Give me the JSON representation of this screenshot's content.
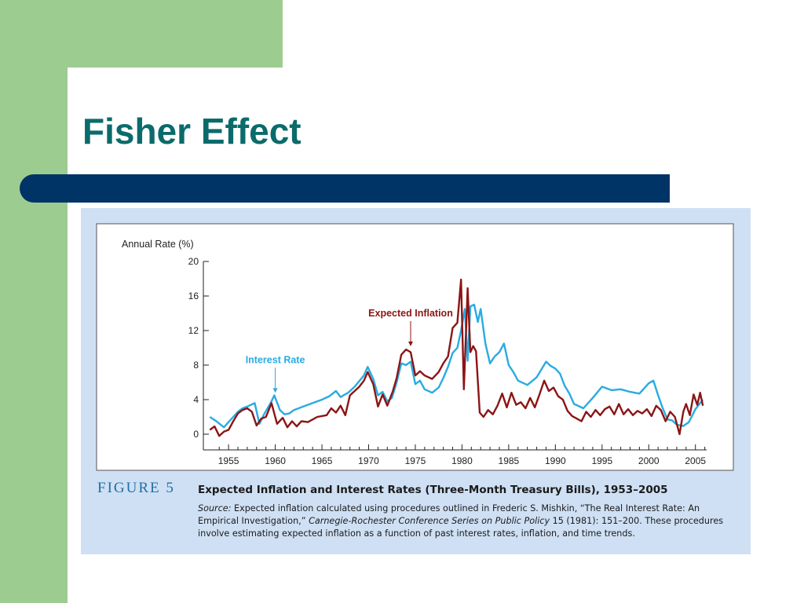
{
  "slide": {
    "title": "Fisher Effect"
  },
  "figure": {
    "label": "FIGURE 5",
    "title": "Expected Inflation and Interest Rates (Three-Month Treasury Bills), 1953–2005",
    "source_label": "Source:",
    "source_text_1": " Expected inflation calculated using procedures outlined in Frederic S. Mishkin, “The Real Interest Rate: An Empirical Investigation,” ",
    "source_journal": "Carnegie-Rochester Conference Series on Public Policy",
    "source_text_2": " 15 (1981): 151–200. These procedures involve estimating expected inflation as a function of past interest rates, inflation, and time trends."
  },
  "colors": {
    "interest_rate": "#29abe2",
    "expected_inflation": "#8b1515",
    "accent_title": "#0b6b6b",
    "bar": "#003366"
  },
  "chart_data": {
    "type": "line",
    "ylabel": "Annual Rate (%)",
    "ylim": [
      0,
      20
    ],
    "yticks": [
      0,
      4,
      8,
      12,
      16,
      20
    ],
    "xlim": [
      1952.3,
      2006.2
    ],
    "xticks": [
      1955,
      1960,
      1965,
      1970,
      1975,
      1980,
      1985,
      1990,
      1995,
      2000,
      2005
    ],
    "annotations": [
      {
        "text": "Interest Rate",
        "series": "Interest Rate",
        "x": 1960,
        "y": 4.6
      },
      {
        "text": "Expected Inflation",
        "series": "Expected Inflation",
        "x": 1974.5,
        "y": 10.0
      }
    ],
    "series": [
      {
        "name": "Interest Rate",
        "color": "#29abe2",
        "points": [
          [
            1953.0,
            2.0
          ],
          [
            1953.7,
            1.5
          ],
          [
            1954.5,
            0.8
          ],
          [
            1955.0,
            1.4
          ],
          [
            1955.5,
            2.0
          ],
          [
            1956.0,
            2.6
          ],
          [
            1956.5,
            3.0
          ],
          [
            1957.0,
            3.2
          ],
          [
            1957.8,
            3.6
          ],
          [
            1958.3,
            1.2
          ],
          [
            1958.8,
            2.3
          ],
          [
            1959.5,
            3.6
          ],
          [
            1959.9,
            4.5
          ],
          [
            1960.5,
            2.8
          ],
          [
            1961.0,
            2.3
          ],
          [
            1961.5,
            2.4
          ],
          [
            1962.0,
            2.8
          ],
          [
            1963.0,
            3.2
          ],
          [
            1964.0,
            3.6
          ],
          [
            1965.0,
            4.0
          ],
          [
            1965.8,
            4.4
          ],
          [
            1966.5,
            5.0
          ],
          [
            1967.0,
            4.3
          ],
          [
            1967.8,
            4.8
          ],
          [
            1968.5,
            5.5
          ],
          [
            1969.5,
            6.8
          ],
          [
            1969.9,
            7.8
          ],
          [
            1970.5,
            6.4
          ],
          [
            1971.0,
            4.5
          ],
          [
            1971.5,
            4.9
          ],
          [
            1972.0,
            3.8
          ],
          [
            1972.5,
            4.2
          ],
          [
            1973.0,
            6.0
          ],
          [
            1973.5,
            8.2
          ],
          [
            1974.0,
            8.0
          ],
          [
            1974.5,
            8.4
          ],
          [
            1975.0,
            5.8
          ],
          [
            1975.5,
            6.2
          ],
          [
            1976.0,
            5.2
          ],
          [
            1976.8,
            4.8
          ],
          [
            1977.5,
            5.4
          ],
          [
            1978.0,
            6.5
          ],
          [
            1978.5,
            7.8
          ],
          [
            1979.0,
            9.4
          ],
          [
            1979.5,
            10.0
          ],
          [
            1979.9,
            12.0
          ],
          [
            1980.3,
            14.5
          ],
          [
            1980.6,
            8.5
          ],
          [
            1980.9,
            14.8
          ],
          [
            1981.3,
            15.0
          ],
          [
            1981.7,
            13.0
          ],
          [
            1982.0,
            14.5
          ],
          [
            1982.5,
            10.5
          ],
          [
            1983.0,
            8.2
          ],
          [
            1983.5,
            9.0
          ],
          [
            1984.0,
            9.5
          ],
          [
            1984.5,
            10.5
          ],
          [
            1985.0,
            8.0
          ],
          [
            1985.5,
            7.2
          ],
          [
            1986.0,
            6.2
          ],
          [
            1987.0,
            5.7
          ],
          [
            1988.0,
            6.6
          ],
          [
            1989.0,
            8.4
          ],
          [
            1989.5,
            7.9
          ],
          [
            1990.0,
            7.6
          ],
          [
            1990.5,
            7.0
          ],
          [
            1991.0,
            5.6
          ],
          [
            1991.5,
            4.7
          ],
          [
            1992.0,
            3.5
          ],
          [
            1993.0,
            3.0
          ],
          [
            1994.0,
            4.2
          ],
          [
            1995.0,
            5.5
          ],
          [
            1996.0,
            5.1
          ],
          [
            1997.0,
            5.2
          ],
          [
            1998.0,
            4.9
          ],
          [
            1999.0,
            4.7
          ],
          [
            2000.0,
            5.9
          ],
          [
            2000.5,
            6.2
          ],
          [
            2001.0,
            4.5
          ],
          [
            2001.5,
            3.0
          ],
          [
            2002.0,
            1.7
          ],
          [
            2002.5,
            1.6
          ],
          [
            2003.0,
            1.1
          ],
          [
            2003.7,
            0.95
          ],
          [
            2004.3,
            1.4
          ],
          [
            2005.0,
            2.9
          ],
          [
            2005.8,
            4.0
          ]
        ]
      },
      {
        "name": "Expected Inflation",
        "color": "#8b1515",
        "points": [
          [
            1953.0,
            0.5
          ],
          [
            1953.5,
            0.9
          ],
          [
            1954.0,
            -0.2
          ],
          [
            1954.5,
            0.3
          ],
          [
            1955.0,
            0.5
          ],
          [
            1955.5,
            1.5
          ],
          [
            1956.0,
            2.4
          ],
          [
            1956.5,
            2.8
          ],
          [
            1957.0,
            3.0
          ],
          [
            1957.5,
            2.6
          ],
          [
            1958.0,
            1.0
          ],
          [
            1958.5,
            1.8
          ],
          [
            1959.0,
            2.0
          ],
          [
            1959.6,
            3.6
          ],
          [
            1960.2,
            1.2
          ],
          [
            1960.8,
            1.9
          ],
          [
            1961.3,
            0.8
          ],
          [
            1961.8,
            1.5
          ],
          [
            1962.3,
            0.9
          ],
          [
            1962.8,
            1.5
          ],
          [
            1963.5,
            1.4
          ],
          [
            1964.5,
            2.0
          ],
          [
            1965.5,
            2.2
          ],
          [
            1966.0,
            3.0
          ],
          [
            1966.5,
            2.5
          ],
          [
            1967.0,
            3.3
          ],
          [
            1967.5,
            2.2
          ],
          [
            1968.0,
            4.5
          ],
          [
            1968.5,
            5.0
          ],
          [
            1969.0,
            5.5
          ],
          [
            1969.5,
            6.2
          ],
          [
            1969.9,
            7.2
          ],
          [
            1970.5,
            5.8
          ],
          [
            1971.0,
            3.2
          ],
          [
            1971.5,
            4.6
          ],
          [
            1972.0,
            3.3
          ],
          [
            1972.6,
            5.0
          ],
          [
            1973.0,
            6.5
          ],
          [
            1973.5,
            9.2
          ],
          [
            1974.0,
            9.8
          ],
          [
            1974.5,
            9.5
          ],
          [
            1975.0,
            6.8
          ],
          [
            1975.5,
            7.3
          ],
          [
            1976.0,
            6.8
          ],
          [
            1976.8,
            6.4
          ],
          [
            1977.5,
            7.2
          ],
          [
            1978.0,
            8.2
          ],
          [
            1978.5,
            9.0
          ],
          [
            1979.0,
            12.3
          ],
          [
            1979.5,
            12.9
          ],
          [
            1979.9,
            17.9
          ],
          [
            1980.2,
            5.2
          ],
          [
            1980.6,
            16.9
          ],
          [
            1980.9,
            9.5
          ],
          [
            1981.2,
            10.2
          ],
          [
            1981.5,
            9.6
          ],
          [
            1981.9,
            2.5
          ],
          [
            1982.3,
            2.0
          ],
          [
            1982.8,
            2.8
          ],
          [
            1983.3,
            2.3
          ],
          [
            1983.8,
            3.3
          ],
          [
            1984.3,
            4.7
          ],
          [
            1984.8,
            3.1
          ],
          [
            1985.3,
            4.8
          ],
          [
            1985.8,
            3.4
          ],
          [
            1986.3,
            3.7
          ],
          [
            1986.8,
            3.0
          ],
          [
            1987.3,
            4.2
          ],
          [
            1987.8,
            3.1
          ],
          [
            1988.3,
            4.6
          ],
          [
            1988.8,
            6.2
          ],
          [
            1989.3,
            5.0
          ],
          [
            1989.8,
            5.4
          ],
          [
            1990.3,
            4.4
          ],
          [
            1990.8,
            4.0
          ],
          [
            1991.3,
            2.7
          ],
          [
            1991.8,
            2.1
          ],
          [
            1992.3,
            1.8
          ],
          [
            1992.8,
            1.5
          ],
          [
            1993.3,
            2.6
          ],
          [
            1993.8,
            2.0
          ],
          [
            1994.3,
            2.8
          ],
          [
            1994.8,
            2.2
          ],
          [
            1995.3,
            2.9
          ],
          [
            1995.8,
            3.2
          ],
          [
            1996.3,
            2.3
          ],
          [
            1996.8,
            3.5
          ],
          [
            1997.3,
            2.3
          ],
          [
            1997.8,
            2.9
          ],
          [
            1998.3,
            2.2
          ],
          [
            1998.8,
            2.7
          ],
          [
            1999.3,
            2.4
          ],
          [
            1999.8,
            2.9
          ],
          [
            2000.3,
            2.1
          ],
          [
            2000.8,
            3.3
          ],
          [
            2001.3,
            2.8
          ],
          [
            2001.8,
            1.5
          ],
          [
            2002.3,
            2.6
          ],
          [
            2002.8,
            2.0
          ],
          [
            2003.3,
            0.0
          ],
          [
            2003.7,
            2.6
          ],
          [
            2004.0,
            3.5
          ],
          [
            2004.4,
            2.2
          ],
          [
            2004.8,
            4.6
          ],
          [
            2005.2,
            3.4
          ],
          [
            2005.5,
            4.8
          ],
          [
            2005.8,
            3.3
          ]
        ]
      }
    ]
  }
}
